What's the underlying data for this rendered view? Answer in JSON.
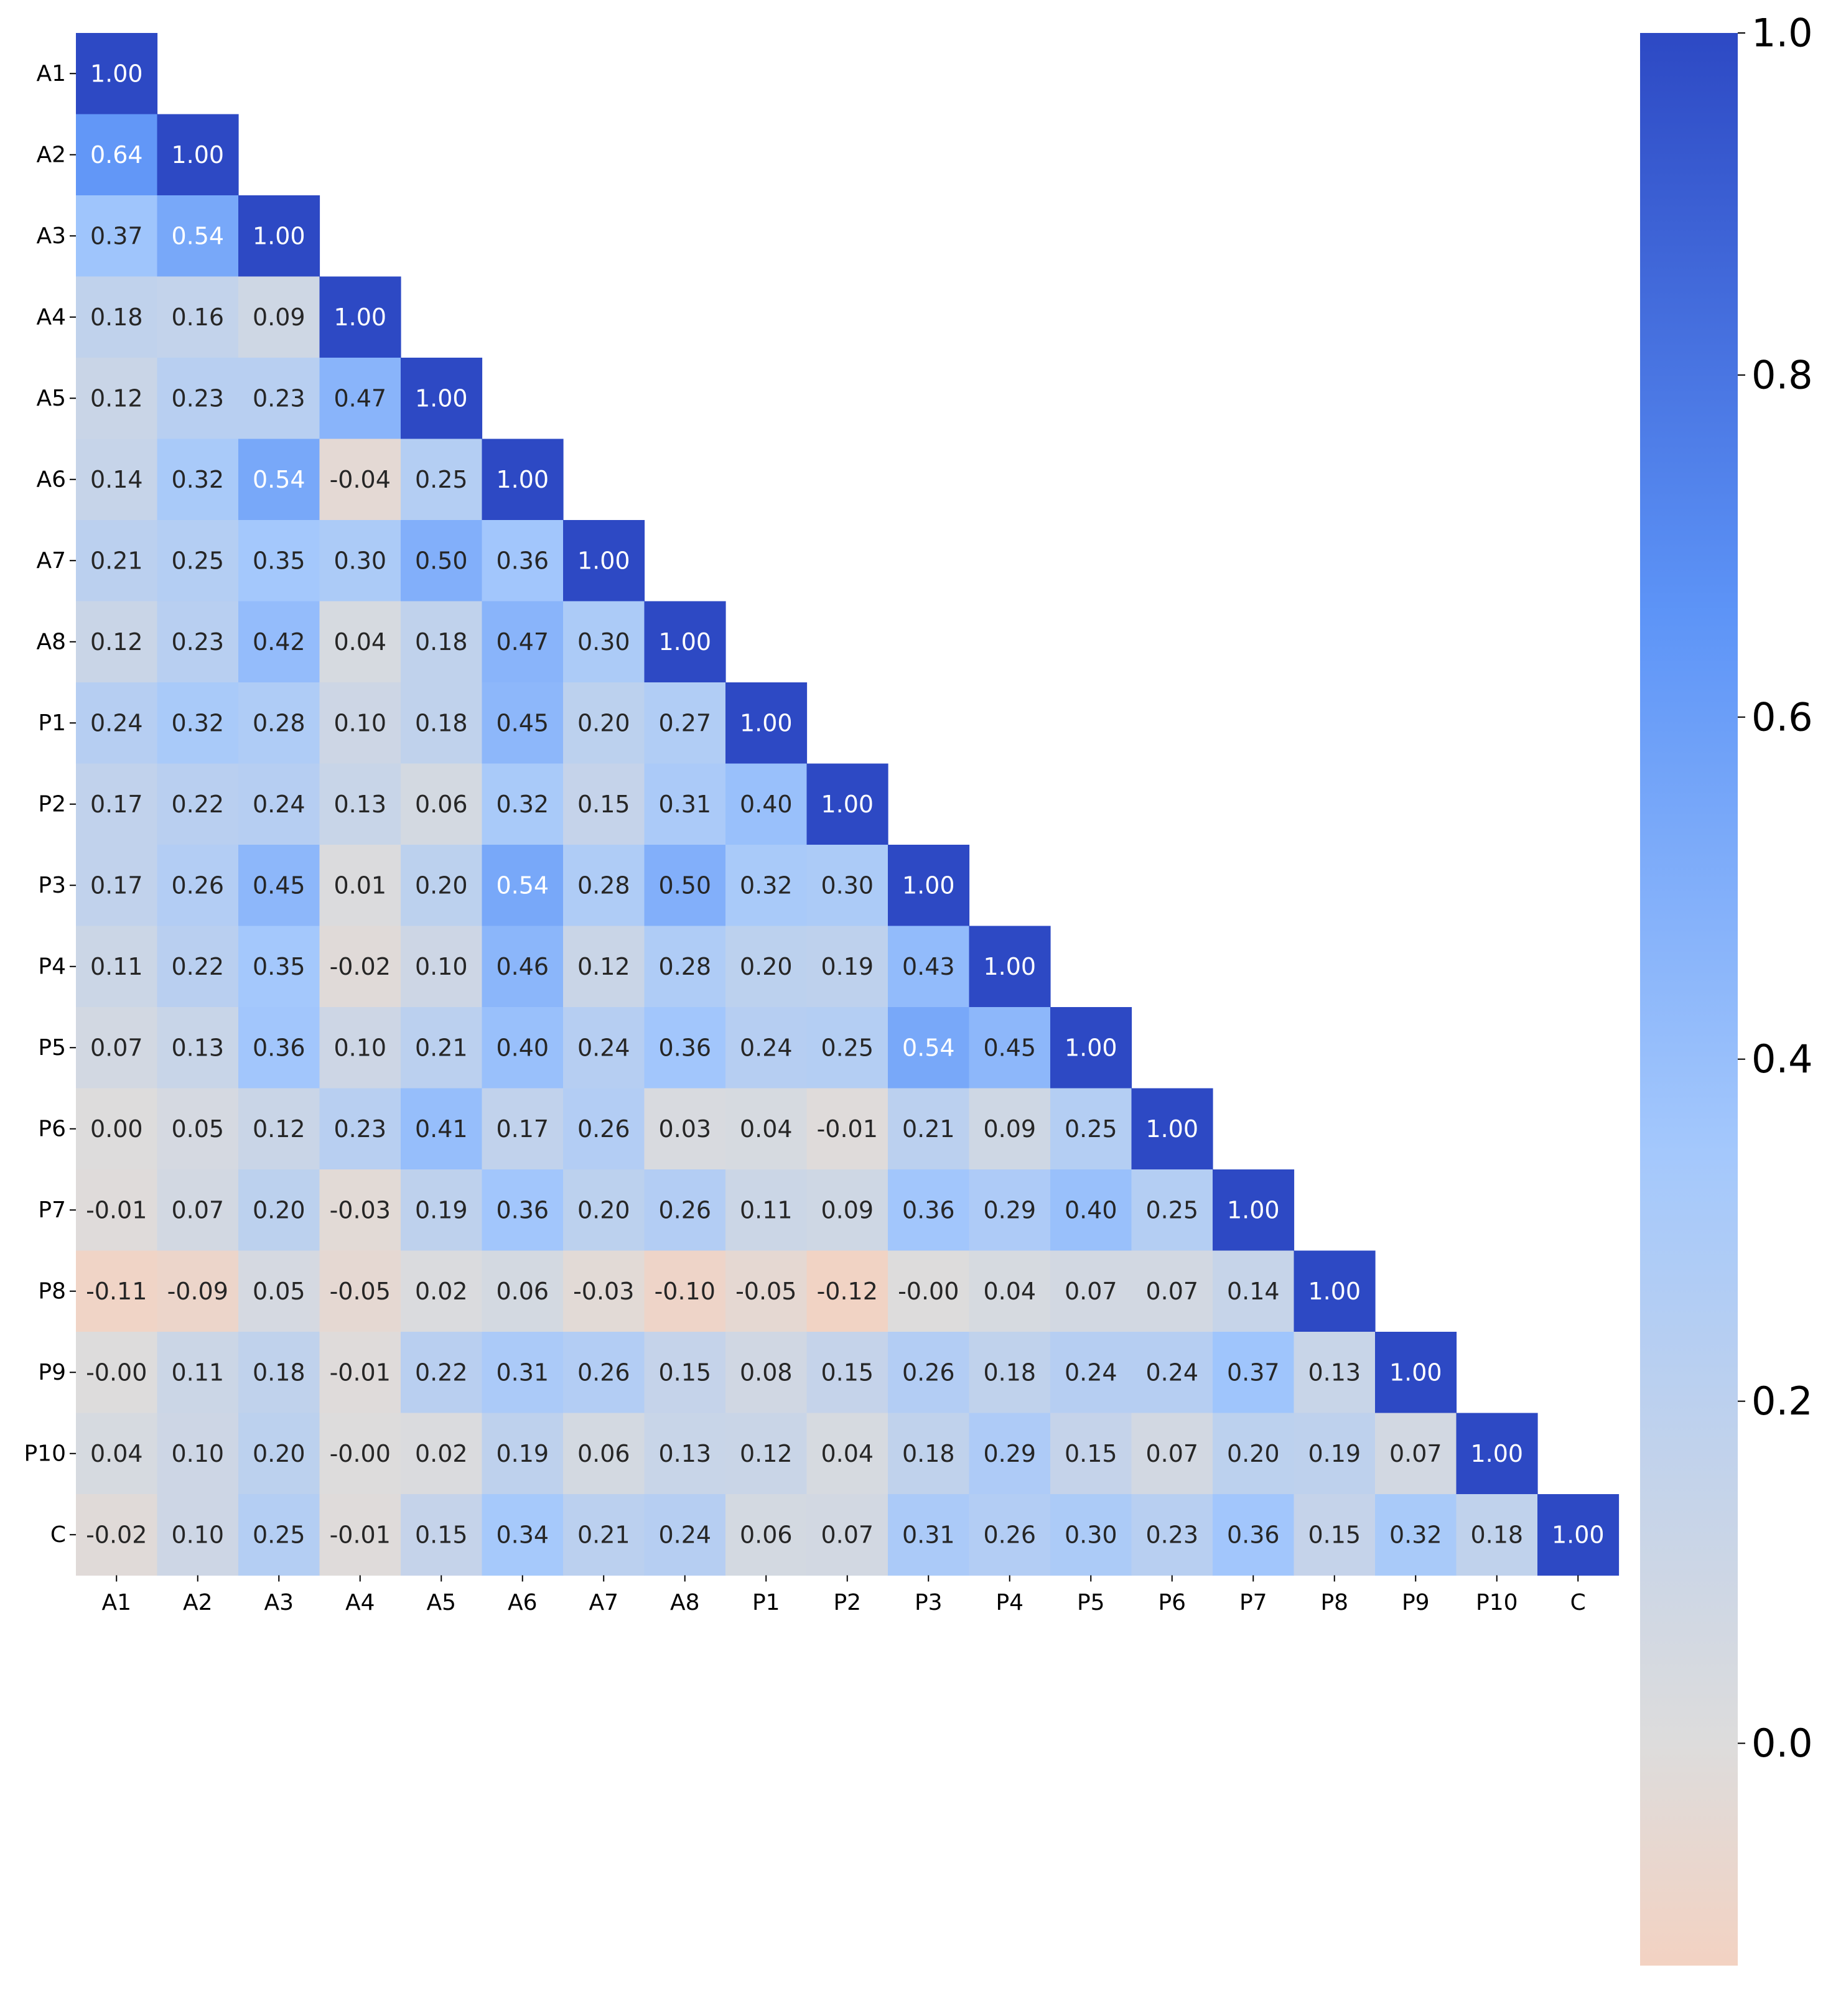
{
  "chart_data": {
    "type": "heatmap",
    "title": "",
    "xlabel": "",
    "ylabel": "",
    "labels": [
      "A1",
      "A2",
      "A3",
      "A4",
      "A5",
      "A6",
      "A7",
      "A8",
      "P1",
      "P2",
      "P3",
      "P4",
      "P5",
      "P6",
      "P7",
      "P8",
      "P9",
      "P10",
      "C"
    ],
    "matrix": [
      [
        "1.00"
      ],
      [
        "0.64",
        "1.00"
      ],
      [
        "0.37",
        "0.54",
        "1.00"
      ],
      [
        "0.18",
        "0.16",
        "0.09",
        "1.00"
      ],
      [
        "0.12",
        "0.23",
        "0.23",
        "0.47",
        "1.00"
      ],
      [
        "0.14",
        "0.32",
        "0.54",
        "-0.04",
        "0.25",
        "1.00"
      ],
      [
        "0.21",
        "0.25",
        "0.35",
        "0.30",
        "0.50",
        "0.36",
        "1.00"
      ],
      [
        "0.12",
        "0.23",
        "0.42",
        "0.04",
        "0.18",
        "0.47",
        "0.30",
        "1.00"
      ],
      [
        "0.24",
        "0.32",
        "0.28",
        "0.10",
        "0.18",
        "0.45",
        "0.20",
        "0.27",
        "1.00"
      ],
      [
        "0.17",
        "0.22",
        "0.24",
        "0.13",
        "0.06",
        "0.32",
        "0.15",
        "0.31",
        "0.40",
        "1.00"
      ],
      [
        "0.17",
        "0.26",
        "0.45",
        "0.01",
        "0.20",
        "0.54",
        "0.28",
        "0.50",
        "0.32",
        "0.30",
        "1.00"
      ],
      [
        "0.11",
        "0.22",
        "0.35",
        "-0.02",
        "0.10",
        "0.46",
        "0.12",
        "0.28",
        "0.20",
        "0.19",
        "0.43",
        "1.00"
      ],
      [
        "0.07",
        "0.13",
        "0.36",
        "0.10",
        "0.21",
        "0.40",
        "0.24",
        "0.36",
        "0.24",
        "0.25",
        "0.54",
        "0.45",
        "1.00"
      ],
      [
        "0.00",
        "0.05",
        "0.12",
        "0.23",
        "0.41",
        "0.17",
        "0.26",
        "0.03",
        "0.04",
        "-0.01",
        "0.21",
        "0.09",
        "0.25",
        "1.00"
      ],
      [
        "-0.01",
        "0.07",
        "0.20",
        "-0.03",
        "0.19",
        "0.36",
        "0.20",
        "0.26",
        "0.11",
        "0.09",
        "0.36",
        "0.29",
        "0.40",
        "0.25",
        "1.00"
      ],
      [
        "-0.11",
        "-0.09",
        "0.05",
        "-0.05",
        "0.02",
        "0.06",
        "-0.03",
        "-0.10",
        "-0.05",
        "-0.12",
        "-0.00",
        "0.04",
        "0.07",
        "0.07",
        "0.14",
        "1.00"
      ],
      [
        "-0.00",
        "0.11",
        "0.18",
        "-0.01",
        "0.22",
        "0.31",
        "0.26",
        "0.15",
        "0.08",
        "0.15",
        "0.26",
        "0.18",
        "0.24",
        "0.24",
        "0.37",
        "0.13",
        "1.00"
      ],
      [
        "0.04",
        "0.10",
        "0.20",
        "-0.00",
        "0.02",
        "0.19",
        "0.06",
        "0.13",
        "0.12",
        "0.04",
        "0.18",
        "0.29",
        "0.15",
        "0.07",
        "0.20",
        "0.19",
        "0.07",
        "1.00"
      ],
      [
        "-0.02",
        "0.10",
        "0.25",
        "-0.01",
        "0.15",
        "0.34",
        "0.21",
        "0.24",
        "0.06",
        "0.07",
        "0.31",
        "0.26",
        "0.30",
        "0.23",
        "0.36",
        "0.15",
        "0.32",
        "0.18",
        "1.00"
      ]
    ],
    "colorbar": {
      "min": -0.13,
      "max": 1.0,
      "ticks": [
        "0.0",
        "0.2",
        "0.4",
        "0.6",
        "0.8",
        "1.0"
      ],
      "colors": {
        "low": "#f3d2c2",
        "mid": "#dddcdc",
        "high_light": "#a4c8fc",
        "high_mid": "#5d94f7",
        "high": "#2d49c4"
      }
    },
    "grid": false,
    "legend": "colorbar-right"
  }
}
